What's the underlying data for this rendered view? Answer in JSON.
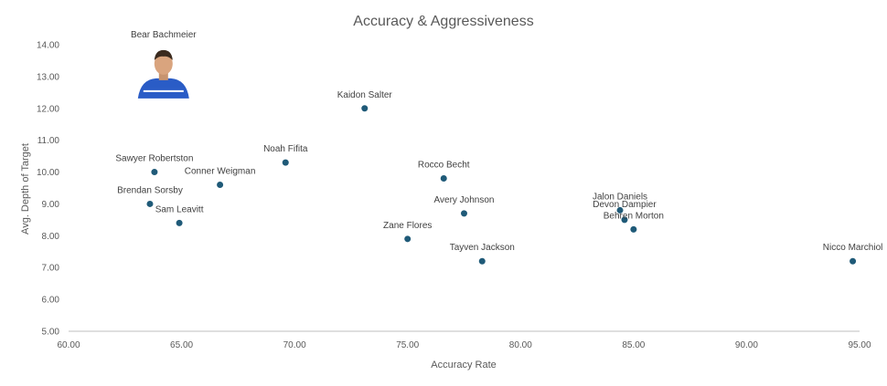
{
  "chart_data": {
    "type": "scatter",
    "title": "Accuracy & Aggressiveness",
    "xlabel": "Accuracy  Rate",
    "ylabel": "Avg. Depth of Target",
    "xlim": [
      60,
      95
    ],
    "ylim": [
      5,
      14
    ],
    "x_ticks": [
      60,
      65,
      70,
      75,
      80,
      85,
      90,
      95
    ],
    "y_ticks": [
      5,
      6,
      7,
      8,
      9,
      10,
      11,
      12,
      13,
      14
    ],
    "tick_format": "0.00",
    "grid": false,
    "marker_color": "#1f5a78",
    "points": [
      {
        "label": "Bear Bachmeier",
        "x": 64.2,
        "y": 13.0,
        "marker": "photo"
      },
      {
        "label": "Kaidon Salter",
        "x": 73.1,
        "y": 12.0
      },
      {
        "label": "Noah Fifita",
        "x": 69.6,
        "y": 10.3
      },
      {
        "label": "Sawyer Robertston",
        "x": 63.8,
        "y": 10.0
      },
      {
        "label": "Conner Weigman",
        "x": 66.7,
        "y": 9.6
      },
      {
        "label": "Brendan Sorsby",
        "x": 63.6,
        "y": 9.0
      },
      {
        "label": "Sam Leavitt",
        "x": 64.9,
        "y": 8.4
      },
      {
        "label": "Rocco Becht",
        "x": 76.6,
        "y": 9.8
      },
      {
        "label": "Avery Johnson",
        "x": 77.5,
        "y": 8.7
      },
      {
        "label": "Zane Flores",
        "x": 75.0,
        "y": 7.9
      },
      {
        "label": "Tayven Jackson",
        "x": 78.3,
        "y": 7.2
      },
      {
        "label": "Jalon Daniels",
        "x": 84.4,
        "y": 8.8
      },
      {
        "label": "Devon Dampier",
        "x": 84.6,
        "y": 8.5
      },
      {
        "label": "Behren Morton",
        "x": 85.0,
        "y": 8.2
      },
      {
        "label": "Nicco Marchiol",
        "x": 94.7,
        "y": 7.2
      }
    ]
  }
}
